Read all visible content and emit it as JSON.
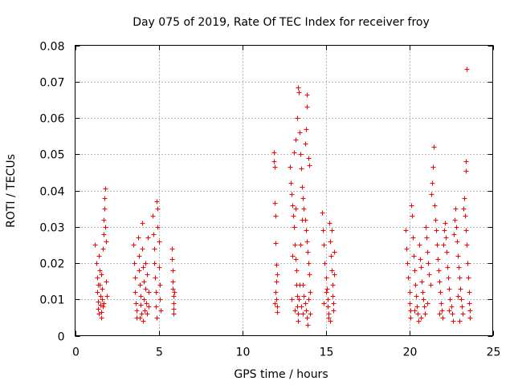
{
  "chart_data": {
    "type": "scatter",
    "title": "Day 075 of 2019, Rate Of TEC Index for receiver froy",
    "xlabel": "GPS time / hours",
    "ylabel": "ROTI / TECUs",
    "xlim": [
      0,
      25
    ],
    "ylim": [
      0,
      0.08
    ],
    "xticks": [
      0,
      5,
      10,
      15,
      20,
      25
    ],
    "xtick_labels": [
      "0",
      "5",
      "10",
      "15",
      "20",
      "25"
    ],
    "yticks": [
      0,
      0.01,
      0.02,
      0.03,
      0.04,
      0.05,
      0.06,
      0.07,
      0.08
    ],
    "ytick_labels": [
      "0",
      "0.01",
      "0.02",
      "0.03",
      "0.04",
      "0.05",
      "0.06",
      "0.07",
      "0.08"
    ],
    "grid": true,
    "marker": "+",
    "color": "#ff0000",
    "series": [
      {
        "name": "ROTI",
        "points": [
          [
            1.2,
            0.025
          ],
          [
            1.25,
            0.02
          ],
          [
            1.3,
            0.016
          ],
          [
            1.3,
            0.012
          ],
          [
            1.35,
            0.0095
          ],
          [
            1.35,
            0.0075
          ],
          [
            1.4,
            0.006
          ],
          [
            1.4,
            0.022
          ],
          [
            1.45,
            0.018
          ],
          [
            1.45,
            0.014
          ],
          [
            1.5,
            0.011
          ],
          [
            1.5,
            0.0085
          ],
          [
            1.55,
            0.0065
          ],
          [
            1.55,
            0.005
          ],
          [
            1.6,
            0.013
          ],
          [
            1.6,
            0.01
          ],
          [
            1.65,
            0.008
          ],
          [
            1.65,
            0.024
          ],
          [
            1.7,
            0.028
          ],
          [
            1.7,
            0.032
          ],
          [
            1.75,
            0.035
          ],
          [
            1.75,
            0.038
          ],
          [
            1.8,
            0.0405
          ],
          [
            1.8,
            0.03
          ],
          [
            1.85,
            0.026
          ],
          [
            1.85,
            0.015
          ],
          [
            1.9,
            0.011
          ],
          [
            1.7,
            0.009
          ],
          [
            1.55,
            0.017
          ],
          [
            1.35,
            0.014
          ],
          [
            3.5,
            0.025
          ],
          [
            3.55,
            0.02
          ],
          [
            3.6,
            0.016
          ],
          [
            3.6,
            0.012
          ],
          [
            3.65,
            0.009
          ],
          [
            3.7,
            0.007
          ],
          [
            3.7,
            0.005
          ],
          [
            3.75,
            0.027
          ],
          [
            3.8,
            0.022
          ],
          [
            3.8,
            0.018
          ],
          [
            3.85,
            0.014
          ],
          [
            3.9,
            0.011
          ],
          [
            3.9,
            0.0085
          ],
          [
            3.95,
            0.006
          ],
          [
            4.0,
            0.031
          ],
          [
            4.0,
            0.024
          ],
          [
            4.05,
            0.019
          ],
          [
            4.1,
            0.015
          ],
          [
            4.1,
            0.01
          ],
          [
            4.15,
            0.007
          ],
          [
            4.2,
            0.02
          ],
          [
            4.2,
            0.013
          ],
          [
            4.25,
            0.009
          ],
          [
            4.3,
            0.006
          ],
          [
            4.3,
            0.017
          ],
          [
            4.35,
            0.027
          ],
          [
            4.4,
            0.012
          ],
          [
            4.4,
            0.008
          ],
          [
            3.85,
            0.005
          ],
          [
            4.05,
            0.004
          ],
          [
            4.65,
            0.033
          ],
          [
            4.7,
            0.028
          ],
          [
            4.75,
            0.024
          ],
          [
            4.75,
            0.02
          ],
          [
            4.8,
            0.016
          ],
          [
            4.85,
            0.012
          ],
          [
            4.85,
            0.008
          ],
          [
            4.9,
            0.037
          ],
          [
            4.95,
            0.035
          ],
          [
            4.95,
            0.03
          ],
          [
            5.0,
            0.026
          ],
          [
            5.0,
            0.019
          ],
          [
            5.05,
            0.014
          ],
          [
            5.05,
            0.01
          ],
          [
            5.1,
            0.007
          ],
          [
            4.9,
            0.005
          ],
          [
            5.8,
            0.024
          ],
          [
            5.8,
            0.021
          ],
          [
            5.85,
            0.018
          ],
          [
            5.85,
            0.015
          ],
          [
            5.85,
            0.013
          ],
          [
            5.9,
            0.011
          ],
          [
            5.9,
            0.009
          ],
          [
            5.9,
            0.0075
          ],
          [
            5.9,
            0.006
          ],
          [
            5.95,
            0.012
          ],
          [
            11.9,
            0.0505
          ],
          [
            11.9,
            0.048
          ],
          [
            11.95,
            0.0465
          ],
          [
            11.95,
            0.0365
          ],
          [
            12.0,
            0.033
          ],
          [
            12.0,
            0.0255
          ],
          [
            12.05,
            0.0195
          ],
          [
            12.05,
            0.015
          ],
          [
            12.05,
            0.01
          ],
          [
            12.1,
            0.008
          ],
          [
            12.1,
            0.0065
          ],
          [
            12.1,
            0.017
          ],
          [
            12.0,
            0.012
          ],
          [
            11.95,
            0.009
          ],
          [
            12.85,
            0.0465
          ],
          [
            12.9,
            0.042
          ],
          [
            12.95,
            0.039
          ],
          [
            13.0,
            0.036
          ],
          [
            13.05,
            0.033
          ],
          [
            13.1,
            0.03
          ],
          [
            13.15,
            0.025
          ],
          [
            13.2,
            0.021
          ],
          [
            13.25,
            0.018
          ],
          [
            13.25,
            0.014
          ],
          [
            13.3,
            0.011
          ],
          [
            13.3,
            0.008
          ],
          [
            13.35,
            0.006
          ],
          [
            13.35,
            0.004
          ],
          [
            13.1,
            0.0505
          ],
          [
            13.2,
            0.054
          ],
          [
            13.3,
            0.06
          ],
          [
            13.35,
            0.0685
          ],
          [
            13.4,
            0.067
          ],
          [
            13.45,
            0.056
          ],
          [
            13.5,
            0.05
          ],
          [
            13.55,
            0.046
          ],
          [
            13.6,
            0.041
          ],
          [
            13.65,
            0.038
          ],
          [
            13.7,
            0.035
          ],
          [
            13.75,
            0.032
          ],
          [
            13.8,
            0.029
          ],
          [
            13.85,
            0.026
          ],
          [
            13.9,
            0.023
          ],
          [
            13.95,
            0.02
          ],
          [
            14.0,
            0.017
          ],
          [
            13.65,
            0.014
          ],
          [
            13.7,
            0.011
          ],
          [
            13.75,
            0.009
          ],
          [
            13.8,
            0.007
          ],
          [
            13.85,
            0.005
          ],
          [
            13.9,
            0.003
          ],
          [
            13.75,
            0.053
          ],
          [
            13.8,
            0.057
          ],
          [
            13.85,
            0.063
          ],
          [
            13.85,
            0.0665
          ],
          [
            13.95,
            0.049
          ],
          [
            14.0,
            0.047
          ],
          [
            13.6,
            0.032
          ],
          [
            13.5,
            0.025
          ],
          [
            13.45,
            0.014
          ],
          [
            13.4,
            0.01
          ],
          [
            13.55,
            0.008
          ],
          [
            13.65,
            0.006
          ],
          [
            13.95,
            0.01
          ],
          [
            14.05,
            0.012
          ],
          [
            14.05,
            0.006
          ],
          [
            13.2,
            0.035
          ],
          [
            13.0,
            0.022
          ],
          [
            12.95,
            0.01
          ],
          [
            13.15,
            0.007
          ],
          [
            14.8,
            0.034
          ],
          [
            14.85,
            0.029
          ],
          [
            14.9,
            0.025
          ],
          [
            14.95,
            0.02
          ],
          [
            15.0,
            0.016
          ],
          [
            15.05,
            0.013
          ],
          [
            15.1,
            0.01
          ],
          [
            15.1,
            0.008
          ],
          [
            15.15,
            0.006
          ],
          [
            15.15,
            0.005
          ],
          [
            15.2,
            0.031
          ],
          [
            15.25,
            0.026
          ],
          [
            15.3,
            0.022
          ],
          [
            15.35,
            0.018
          ],
          [
            15.4,
            0.014
          ],
          [
            15.4,
            0.011
          ],
          [
            15.45,
            0.009
          ],
          [
            15.45,
            0.007
          ],
          [
            15.5,
            0.023
          ],
          [
            15.5,
            0.017
          ],
          [
            15.0,
            0.012
          ],
          [
            14.9,
            0.009
          ],
          [
            15.25,
            0.004
          ],
          [
            15.35,
            0.029
          ],
          [
            19.8,
            0.029
          ],
          [
            19.85,
            0.024
          ],
          [
            19.9,
            0.02
          ],
          [
            19.95,
            0.016
          ],
          [
            20.0,
            0.012
          ],
          [
            20.0,
            0.009
          ],
          [
            20.05,
            0.007
          ],
          [
            20.05,
            0.005
          ],
          [
            20.1,
            0.036
          ],
          [
            20.15,
            0.033
          ],
          [
            20.2,
            0.027
          ],
          [
            20.25,
            0.022
          ],
          [
            20.3,
            0.018
          ],
          [
            20.35,
            0.014
          ],
          [
            20.4,
            0.011
          ],
          [
            20.45,
            0.008
          ],
          [
            20.5,
            0.006
          ],
          [
            20.55,
            0.004
          ],
          [
            20.6,
            0.025
          ],
          [
            20.65,
            0.021
          ],
          [
            20.7,
            0.019
          ],
          [
            20.75,
            0.015
          ],
          [
            20.8,
            0.012
          ],
          [
            20.85,
            0.01
          ],
          [
            20.9,
            0.008
          ],
          [
            20.95,
            0.006
          ],
          [
            21.0,
            0.03
          ],
          [
            21.05,
            0.027
          ],
          [
            21.1,
            0.023
          ],
          [
            21.15,
            0.02
          ],
          [
            21.2,
            0.017
          ],
          [
            21.25,
            0.014
          ],
          [
            21.3,
            0.039
          ],
          [
            21.35,
            0.042
          ],
          [
            21.4,
            0.0465
          ],
          [
            21.45,
            0.052
          ],
          [
            21.5,
            0.036
          ],
          [
            21.55,
            0.032
          ],
          [
            21.6,
            0.029
          ],
          [
            21.65,
            0.025
          ],
          [
            21.7,
            0.021
          ],
          [
            21.75,
            0.018
          ],
          [
            21.8,
            0.015
          ],
          [
            21.85,
            0.012
          ],
          [
            21.9,
            0.009
          ],
          [
            21.95,
            0.007
          ],
          [
            22.0,
            0.005
          ],
          [
            22.05,
            0.025
          ],
          [
            22.1,
            0.029
          ],
          [
            22.15,
            0.031
          ],
          [
            22.2,
            0.027
          ],
          [
            22.25,
            0.023
          ],
          [
            22.3,
            0.019
          ],
          [
            22.35,
            0.016
          ],
          [
            22.4,
            0.013
          ],
          [
            22.45,
            0.01
          ],
          [
            22.5,
            0.008
          ],
          [
            22.55,
            0.006
          ],
          [
            22.6,
            0.004
          ],
          [
            22.65,
            0.028
          ],
          [
            22.7,
            0.032
          ],
          [
            22.75,
            0.035
          ],
          [
            22.8,
            0.03
          ],
          [
            22.85,
            0.026
          ],
          [
            22.9,
            0.022
          ],
          [
            22.95,
            0.019
          ],
          [
            23.0,
            0.016
          ],
          [
            23.05,
            0.013
          ],
          [
            23.1,
            0.01
          ],
          [
            23.15,
            0.008
          ],
          [
            23.2,
            0.006
          ],
          [
            23.25,
            0.035
          ],
          [
            23.3,
            0.038
          ],
          [
            23.35,
            0.033
          ],
          [
            23.4,
            0.029
          ],
          [
            23.45,
            0.025
          ],
          [
            23.5,
            0.02
          ],
          [
            23.55,
            0.016
          ],
          [
            23.6,
            0.012
          ],
          [
            23.6,
            0.009
          ],
          [
            23.65,
            0.007
          ],
          [
            23.65,
            0.005
          ],
          [
            23.4,
            0.048
          ],
          [
            23.4,
            0.0455
          ],
          [
            23.45,
            0.0735
          ],
          [
            20.3,
            0.007
          ],
          [
            21.1,
            0.009
          ],
          [
            22.4,
            0.007
          ],
          [
            23.0,
            0.004
          ],
          [
            21.8,
            0.006
          ],
          [
            20.7,
            0.005
          ],
          [
            22.9,
            0.011
          ]
        ]
      }
    ]
  }
}
